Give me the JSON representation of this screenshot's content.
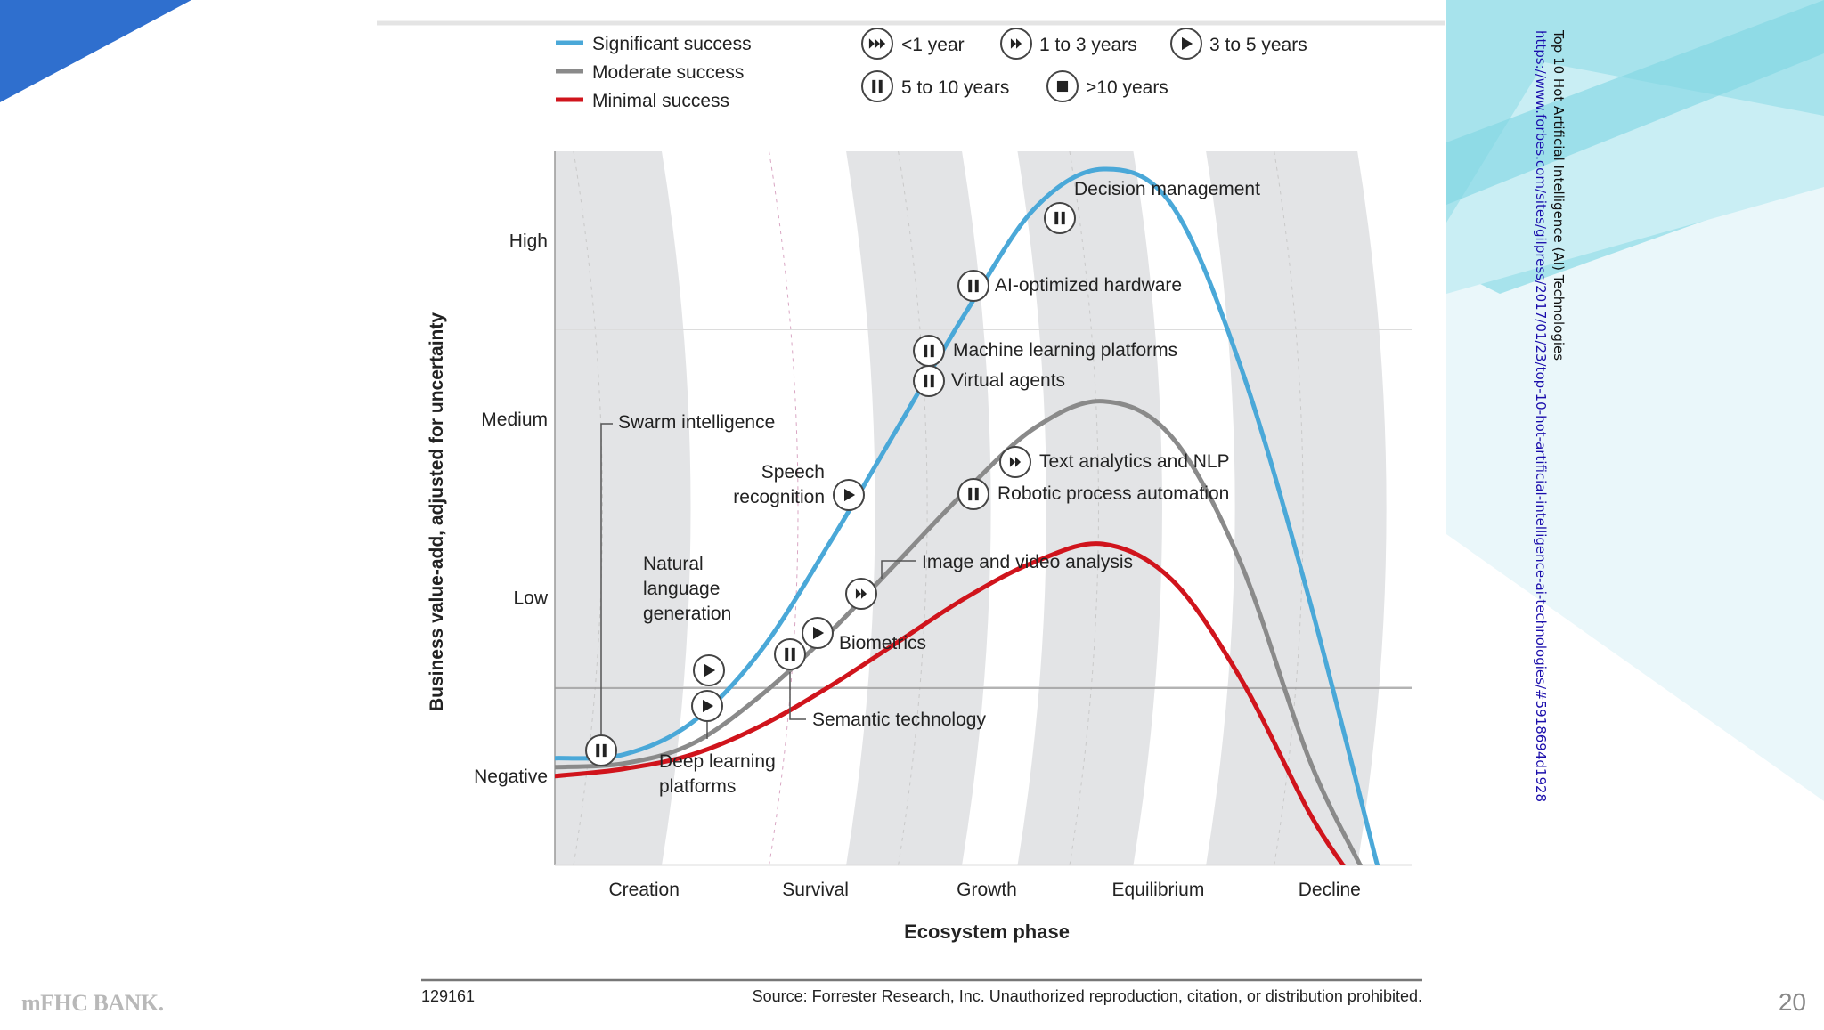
{
  "slide": {
    "page_number": "20",
    "logo_text": "mFHC BANK.",
    "reference_title": "Top 10 Hot Artificial Intelligence (AI) Technologies",
    "reference_url": "https://www.forbes.com/sites/gilpress/2017/01/23/top-10-hot-artificial-intelligence-ai-technologies/#5918694d1928",
    "colors": {
      "deco_blue": "#2f6fce",
      "deco_cyan": "#7fd6e3",
      "deco_light": "#c9eef4"
    }
  },
  "chart_data": {
    "type": "line",
    "title": "",
    "xlabel": "Ecosystem phase",
    "ylabel": "Business value-add, adjusted for uncertainty",
    "x_categories": [
      "Creation",
      "Survival",
      "Growth",
      "Equilibrium",
      "Decline"
    ],
    "y_categories": [
      "Negative",
      "Low",
      "Medium",
      "High"
    ],
    "x_domain": [
      0,
      5
    ],
    "y_domain": [
      -0.5,
      3.5
    ],
    "grid": true,
    "legend": {
      "placement": "top",
      "success": [
        {
          "label": "Significant success",
          "color": "#4aa8d8"
        },
        {
          "label": "Moderate success",
          "color": "#8a8a8a"
        },
        {
          "label": "Minimal success",
          "color": "#d0141c"
        }
      ],
      "time": [
        {
          "icon": "fast-forward-3",
          "label": "<1 year"
        },
        {
          "icon": "fast-forward-2",
          "label": "1 to 3 years"
        },
        {
          "icon": "play",
          "label": "3 to 5 years"
        },
        {
          "icon": "pause",
          "label": "5 to 10 years"
        },
        {
          "icon": "stop",
          "label": ">10 years"
        }
      ]
    },
    "series": [
      {
        "name": "Significant success",
        "color": "#4aa8d8",
        "points": [
          [
            0.0,
            0.1
          ],
          [
            0.4,
            0.12
          ],
          [
            0.8,
            0.3
          ],
          [
            1.2,
            0.7
          ],
          [
            1.6,
            1.3
          ],
          [
            2.0,
            1.95
          ],
          [
            2.4,
            2.6
          ],
          [
            2.8,
            3.18
          ],
          [
            3.2,
            3.4
          ],
          [
            3.6,
            3.2
          ],
          [
            4.0,
            2.3
          ],
          [
            4.4,
            1.0
          ],
          [
            4.8,
            -0.5
          ]
        ]
      },
      {
        "name": "Moderate success",
        "color": "#8a8a8a",
        "points": [
          [
            0.0,
            0.05
          ],
          [
            0.4,
            0.07
          ],
          [
            0.8,
            0.18
          ],
          [
            1.2,
            0.45
          ],
          [
            1.6,
            0.8
          ],
          [
            2.0,
            1.2
          ],
          [
            2.4,
            1.6
          ],
          [
            2.8,
            1.95
          ],
          [
            3.2,
            2.1
          ],
          [
            3.6,
            1.9
          ],
          [
            4.0,
            1.2
          ],
          [
            4.4,
            0.1
          ],
          [
            4.7,
            -0.5
          ]
        ]
      },
      {
        "name": "Minimal success",
        "color": "#d0141c",
        "points": [
          [
            0.0,
            0.0
          ],
          [
            0.4,
            0.04
          ],
          [
            0.8,
            0.12
          ],
          [
            1.2,
            0.28
          ],
          [
            1.6,
            0.5
          ],
          [
            2.0,
            0.75
          ],
          [
            2.4,
            1.0
          ],
          [
            2.8,
            1.2
          ],
          [
            3.2,
            1.3
          ],
          [
            3.6,
            1.1
          ],
          [
            4.0,
            0.55
          ],
          [
            4.4,
            -0.2
          ],
          [
            4.6,
            -0.5
          ]
        ]
      }
    ],
    "technologies": [
      {
        "label": "Decision management",
        "icon": "pause",
        "x": 2.95,
        "y": 3.25
      },
      {
        "label": "AI-optimized hardware",
        "icon": "pause",
        "x": 2.45,
        "y": 2.8
      },
      {
        "label": "Machine learning platforms",
        "icon": "pause",
        "x": 2.2,
        "y": 2.44
      },
      {
        "label": "Virtual agents",
        "icon": "pause",
        "x": 2.2,
        "y": 2.27
      },
      {
        "label": "Swarm intelligence",
        "icon": "pause",
        "x": 0.27,
        "y": 0.03
      },
      {
        "label": "Speech recognition",
        "icon": "play",
        "x": 1.72,
        "y": 1.45
      },
      {
        "label": "Text analytics and NLP",
        "icon": "fast-forward-2",
        "x": 2.7,
        "y": 1.63
      },
      {
        "label": "Robotic process automation",
        "icon": "pause",
        "x": 2.45,
        "y": 1.45
      },
      {
        "label": "Image and video analysis",
        "icon": "fast-forward-2",
        "x": 1.8,
        "y": 0.9
      },
      {
        "label": "Natural language generation",
        "icon": "play",
        "x": 0.9,
        "y": 0.48
      },
      {
        "label": "Biometrics",
        "icon": "play",
        "x": 1.53,
        "y": 0.68
      },
      {
        "label": "Semantic technology",
        "icon": "pause",
        "x": 1.38,
        "y": 0.55
      },
      {
        "label": "Deep learning platforms",
        "icon": "play",
        "x": 0.89,
        "y": 0.28
      }
    ],
    "footer": {
      "id": "129161",
      "source": "Source: Forrester Research, Inc. Unauthorized reproduction, citation, or distribution prohibited."
    }
  }
}
